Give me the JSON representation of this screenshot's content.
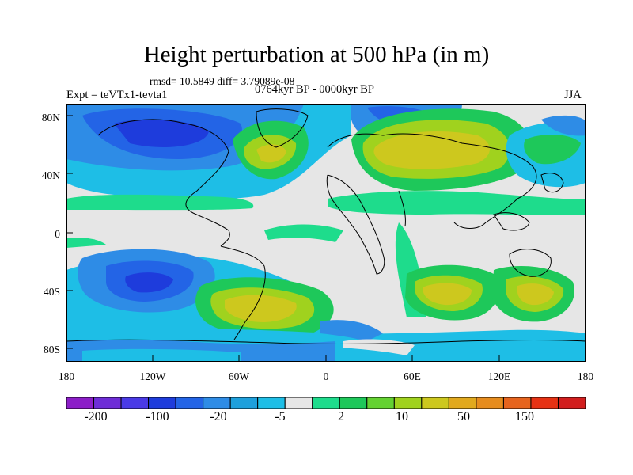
{
  "title": "Height perturbation at 500 hPa (in m)",
  "stats_line": "rmsd= 10.5849 diff= 3.79089e-08",
  "period": "0764kyr BP - 0000kyr BP",
  "experiment": "Expt = teVTx1-tevta1",
  "season": "JJA",
  "lat_labels": [
    "80N",
    "40N",
    "0",
    "40S",
    "80S"
  ],
  "lon_labels": [
    "180",
    "120W",
    "60W",
    "0",
    "60E",
    "120E",
    "180"
  ],
  "colorbar": {
    "colors": [
      "#8c1ec8",
      "#6e2dd7",
      "#4a3ae6",
      "#1e3cdc",
      "#2364e6",
      "#2e8ce6",
      "#1ea0dc",
      "#1ebee6",
      "#e6e6e6",
      "#1edc8c",
      "#1ec85a",
      "#64d232",
      "#a0d21e",
      "#cdc81e",
      "#e1a91e",
      "#e68c1e",
      "#e6641e",
      "#e63214",
      "#d21e1e"
    ],
    "labels": [
      "-200",
      "-100",
      "-20",
      "-5",
      "2",
      "10",
      "50",
      "150"
    ]
  }
}
